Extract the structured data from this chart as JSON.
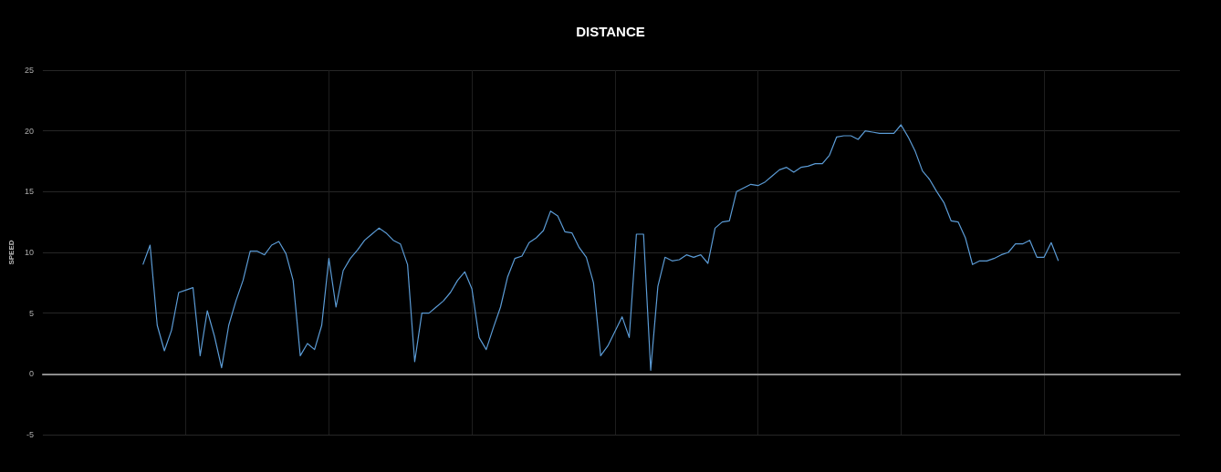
{
  "chart_data": {
    "type": "line",
    "title": "DISTANCE",
    "ylabel": "SPEED",
    "categories": [
      null,
      null,
      null,
      null,
      null,
      null,
      null,
      null,
      null,
      null,
      null,
      null,
      null,
      null,
      null,
      null,
      null,
      null,
      null,
      null,
      null,
      null,
      null,
      null,
      null,
      null,
      null,
      null,
      null,
      null,
      null,
      null,
      null,
      null,
      null,
      null,
      null,
      null,
      null,
      null,
      null,
      null,
      null,
      null,
      null,
      null,
      null,
      null,
      null,
      null,
      null,
      null,
      null,
      null,
      null,
      null,
      null,
      null,
      null,
      null,
      null,
      null,
      null,
      null,
      null,
      null,
      null,
      null,
      null,
      null,
      null,
      null,
      null,
      null,
      null,
      null,
      null,
      null,
      null,
      null,
      null,
      null,
      null,
      null,
      null,
      null,
      null,
      null,
      null,
      null,
      null,
      null,
      null,
      null,
      null,
      null,
      null,
      null,
      null,
      null,
      null,
      null,
      null,
      null,
      null,
      null,
      null,
      null,
      null,
      null,
      null,
      null,
      null,
      null,
      null,
      null,
      null,
      null,
      null,
      null,
      null,
      null,
      null,
      null,
      null,
      null,
      null,
      null,
      null,
      null,
      null,
      null,
      null,
      null,
      null,
      null,
      null,
      null,
      null,
      null,
      null,
      null,
      null,
      null,
      null,
      null,
      null,
      null,
      null,
      null,
      null,
      null,
      null,
      null,
      null,
      null,
      null,
      null,
      null,
      null
    ],
    "series": [
      {
        "color": "#5b9bd5",
        "values": [
          null,
          null,
          null,
          null,
          null,
          null,
          null,
          null,
          null,
          null,
          null,
          null,
          null,
          null,
          9.0,
          10.6,
          4.0,
          1.9,
          3.6,
          6.7,
          6.9,
          7.1,
          1.5,
          5.2,
          3.1,
          0.5,
          4.0,
          6.0,
          7.7,
          10.1,
          10.1,
          9.8,
          10.6,
          10.9,
          9.9,
          7.7,
          1.5,
          2.5,
          2.0,
          4.0,
          9.5,
          5.5,
          8.5,
          9.5,
          10.2,
          11.0,
          11.5,
          12.0,
          11.6,
          11.0,
          10.7,
          9.0,
          1.0,
          5.0,
          5.0,
          5.5,
          6.0,
          6.7,
          7.7,
          8.4,
          7.0,
          3.0,
          2.0,
          3.8,
          5.5,
          8.0,
          9.5,
          9.7,
          10.8,
          11.2,
          11.8,
          13.4,
          13.0,
          11.7,
          11.6,
          10.4,
          9.6,
          7.5,
          1.5,
          2.3,
          3.5,
          4.7,
          3.0,
          11.5,
          11.5,
          0.3,
          7.2,
          9.6,
          9.3,
          9.4,
          9.8,
          9.6,
          9.8,
          9.1,
          12.0,
          12.5,
          12.6,
          15.0,
          15.3,
          15.6,
          15.5,
          15.8,
          16.3,
          16.8,
          17.0,
          16.6,
          17.0,
          17.1,
          17.3,
          17.3,
          18.0,
          19.5,
          19.6,
          19.6,
          19.3,
          20.0,
          19.9,
          19.8,
          19.8,
          19.8,
          20.5,
          19.5,
          18.3,
          16.7,
          16.0,
          15.0,
          14.1,
          12.6,
          12.5,
          11.2,
          9.0,
          9.3,
          9.3,
          9.5,
          9.8,
          10.0,
          10.7,
          10.7,
          11.0,
          9.6,
          9.6,
          10.8,
          9.3,
          null,
          null,
          null,
          null,
          null,
          null,
          null,
          null,
          null,
          null,
          null,
          null,
          null,
          null,
          null,
          null,
          null
        ]
      }
    ],
    "ylim": [
      -5,
      25
    ],
    "yticks": [
      -5,
      0,
      5,
      10,
      15,
      20,
      25
    ],
    "grid": true,
    "marker": "none"
  }
}
